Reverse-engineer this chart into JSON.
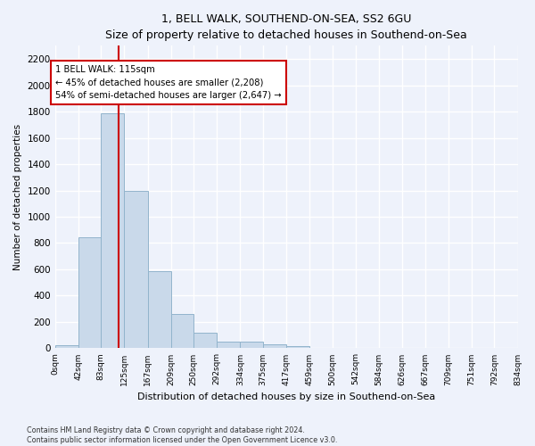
{
  "title": "1, BELL WALK, SOUTHEND-ON-SEA, SS2 6GU",
  "subtitle": "Size of property relative to detached houses in Southend-on-Sea",
  "xlabel": "Distribution of detached houses by size in Southend-on-Sea",
  "ylabel": "Number of detached properties",
  "bar_values": [
    25,
    845,
    1790,
    1200,
    585,
    260,
    115,
    50,
    50,
    30,
    18,
    0,
    0,
    0,
    0,
    0,
    0,
    0,
    0,
    0
  ],
  "bin_edges": [
    0,
    42,
    83,
    125,
    167,
    209,
    250,
    292,
    334,
    375,
    417,
    459,
    500,
    542,
    584,
    626,
    667,
    709,
    751,
    792,
    834
  ],
  "tick_labels": [
    "0sqm",
    "42sqm",
    "83sqm",
    "125sqm",
    "167sqm",
    "209sqm",
    "250sqm",
    "292sqm",
    "334sqm",
    "375sqm",
    "417sqm",
    "459sqm",
    "500sqm",
    "542sqm",
    "584sqm",
    "626sqm",
    "667sqm",
    "709sqm",
    "751sqm",
    "792sqm",
    "834sqm"
  ],
  "bar_color": "#c9d9ea",
  "bar_edge_color": "#92b4cc",
  "vline_x": 115,
  "vline_color": "#cc0000",
  "annotation_text": "1 BELL WALK: 115sqm\n← 45% of detached houses are smaller (2,208)\n54% of semi-detached houses are larger (2,647) →",
  "annotation_box_color": "#ffffff",
  "annotation_box_edge": "#cc0000",
  "ylim": [
    0,
    2300
  ],
  "yticks": [
    0,
    200,
    400,
    600,
    800,
    1000,
    1200,
    1400,
    1600,
    1800,
    2000,
    2200
  ],
  "footer1": "Contains HM Land Registry data © Crown copyright and database right 2024.",
  "footer2": "Contains public sector information licensed under the Open Government Licence v3.0.",
  "bg_color": "#eef2fb",
  "grid_color": "#ffffff"
}
